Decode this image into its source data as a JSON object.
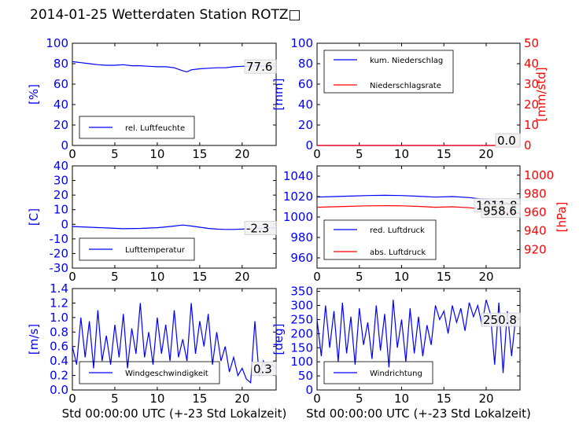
{
  "title": "2014-01-25 Wetterdaten Station ROTZ□",
  "colors": {
    "blue": "#0000ff",
    "red": "#ff0000",
    "black": "#000000"
  },
  "chart_data": [
    {
      "type": "line",
      "panel": "humidity",
      "ylabel": "[%]",
      "xlabel": "",
      "xlim": [
        0,
        24
      ],
      "ylim": [
        0,
        100
      ],
      "xticks": [
        0,
        5,
        10,
        15,
        20
      ],
      "yticks": [
        0,
        20,
        40,
        60,
        80,
        100
      ],
      "series": [
        {
          "name": "rel. Luftfeuchte",
          "color": "#0000ff",
          "x": [
            0,
            1,
            2,
            3,
            4,
            5,
            6,
            7,
            8,
            9,
            10,
            11,
            12,
            13,
            13.5,
            14,
            15,
            16,
            17,
            18,
            19,
            20,
            21,
            22,
            23,
            24
          ],
          "y": [
            82,
            81,
            80,
            79,
            78.5,
            78.5,
            79,
            78,
            78,
            77.5,
            77,
            77,
            76,
            73,
            72,
            74,
            75,
            75.5,
            76,
            76,
            77,
            77.5,
            77.5,
            78,
            77.6,
            77.6
          ]
        }
      ],
      "legend": "lower-left",
      "last_value_label": "77.6"
    },
    {
      "type": "line",
      "panel": "precipitation",
      "ylabel": "[mm]",
      "y2label": "[mm/std]",
      "xlabel": "",
      "xlim": [
        0,
        24
      ],
      "ylim": [
        0,
        100
      ],
      "y2lim": [
        0,
        50
      ],
      "xticks": [
        0,
        5,
        10,
        15,
        20
      ],
      "yticks": [
        0,
        20,
        40,
        60,
        80,
        100
      ],
      "y2ticks": [
        0,
        10,
        20,
        30,
        40,
        50
      ],
      "series": [
        {
          "name": "kum. Niederschlag",
          "color": "#0000ff",
          "axis": "left",
          "x": [
            0,
            24
          ],
          "y": [
            0,
            0
          ]
        },
        {
          "name": "Niederschlagsrate",
          "color": "#ff0000",
          "axis": "right",
          "x": [
            0,
            24
          ],
          "y": [
            0,
            0
          ]
        }
      ],
      "legend": "upper-left",
      "last_value_labels": [
        "0.0",
        "0.0"
      ]
    },
    {
      "type": "line",
      "panel": "temperature",
      "ylabel": "[C]",
      "xlabel": "",
      "xlim": [
        0,
        24
      ],
      "ylim": [
        -30,
        40
      ],
      "xticks": [
        0,
        5,
        10,
        15,
        20
      ],
      "yticks": [
        -30,
        -20,
        -10,
        0,
        10,
        20,
        30,
        40
      ],
      "series": [
        {
          "name": "Lufttemperatur",
          "color": "#0000ff",
          "x": [
            0,
            2,
            4,
            6,
            8,
            10,
            11,
            12,
            13,
            14,
            15,
            16,
            17,
            18,
            19,
            20,
            21,
            22,
            23,
            24
          ],
          "y": [
            -1.5,
            -2,
            -2.5,
            -3,
            -2.8,
            -2.3,
            -1.8,
            -1.2,
            -0.5,
            -1.2,
            -2,
            -2.8,
            -3.3,
            -3.5,
            -3.5,
            -3.3,
            -3,
            -2.8,
            -2.5,
            -2.3
          ]
        }
      ],
      "legend": "lower-left",
      "last_value_label": "-2.3"
    },
    {
      "type": "line",
      "panel": "pressure",
      "ylabel": "",
      "y2label": "[hPa]",
      "xlabel": "",
      "xlim": [
        0,
        24
      ],
      "ylim": [
        950,
        1050
      ],
      "y2lim": [
        900,
        1010
      ],
      "xticks": [
        0,
        5,
        10,
        15,
        20
      ],
      "yticks": [
        960,
        980,
        1000,
        1020,
        1040
      ],
      "y2ticks": [
        920,
        940,
        960,
        980,
        1000
      ],
      "series": [
        {
          "name": "red. Luftdruck",
          "color": "#0000ff",
          "axis": "left",
          "x": [
            0,
            2,
            4,
            6,
            8,
            10,
            12,
            14,
            16,
            18,
            20,
            22,
            24
          ],
          "y": [
            1019.5,
            1020,
            1020.5,
            1021,
            1021.2,
            1021,
            1020.3,
            1019.5,
            1020,
            1019,
            1017,
            1014,
            1011.8
          ]
        },
        {
          "name": "abs. Luftdruck",
          "color": "#ff0000",
          "axis": "right",
          "x": [
            0,
            2,
            4,
            6,
            8,
            10,
            12,
            14,
            16,
            18,
            20,
            22,
            24
          ],
          "y": [
            965.5,
            966,
            966.5,
            967,
            967.2,
            967,
            966.4,
            965.5,
            966,
            965,
            963,
            960.5,
            958.6
          ]
        }
      ],
      "legend": "lower-left",
      "last_value_labels": [
        "1011.8",
        "958.6"
      ]
    },
    {
      "type": "line",
      "panel": "windspeed",
      "ylabel": "[m/s]",
      "xlabel": "Std 00:00:00 UTC (+-23 Std Lokalzeit)",
      "xlim": [
        0,
        24
      ],
      "ylim": [
        0,
        1.4
      ],
      "xticks": [
        0,
        5,
        10,
        15,
        20
      ],
      "yticks": [
        0.0,
        0.2,
        0.4,
        0.6,
        0.8,
        1.0,
        1.2,
        1.4
      ],
      "series": [
        {
          "name": "Windgeschwindigkeit",
          "color": "#0000ff",
          "x": [
            0,
            0.5,
            1,
            1.5,
            2,
            2.5,
            3,
            3.5,
            4,
            4.5,
            5,
            5.5,
            6,
            6.5,
            7,
            7.5,
            8,
            8.5,
            9,
            9.5,
            10,
            10.5,
            11,
            11.5,
            12,
            12.5,
            13,
            13.5,
            14,
            14.5,
            15,
            15.5,
            16,
            16.5,
            17,
            17.5,
            18,
            18.5,
            19,
            19.5,
            20,
            20.5,
            21,
            21.5,
            22,
            22.5,
            23,
            23.5,
            24
          ],
          "y": [
            0.6,
            0.35,
            1.0,
            0.45,
            0.95,
            0.3,
            1.1,
            0.4,
            0.75,
            0.35,
            0.9,
            0.45,
            1.05,
            0.3,
            0.85,
            0.5,
            1.2,
            0.45,
            0.8,
            0.35,
            1.0,
            0.5,
            0.9,
            0.4,
            1.1,
            0.45,
            0.7,
            0.4,
            1.2,
            0.5,
            0.95,
            0.6,
            1.05,
            0.35,
            0.8,
            0.4,
            0.6,
            0.25,
            0.45,
            0.2,
            0.3,
            0.15,
            0.1,
            0.95,
            0.2,
            0.4,
            0.25,
            0.35,
            0.3
          ]
        }
      ],
      "legend": "lower-center",
      "last_value_label": "0.3"
    },
    {
      "type": "line",
      "panel": "winddirection",
      "ylabel": "[deg]",
      "xlabel": "Std 00:00:00 UTC (+-23 Std Lokalzeit)",
      "xlim": [
        0,
        24
      ],
      "ylim": [
        0,
        360
      ],
      "xticks": [
        0,
        5,
        10,
        15,
        20
      ],
      "yticks": [
        0,
        50,
        100,
        150,
        200,
        250,
        300,
        350
      ],
      "series": [
        {
          "name": "Windrichtung",
          "color": "#0000ff",
          "x": [
            0,
            0.5,
            1,
            1.5,
            2,
            2.5,
            3,
            3.5,
            4,
            4.5,
            5,
            5.5,
            6,
            6.5,
            7,
            7.5,
            8,
            8.5,
            9,
            9.5,
            10,
            10.5,
            11,
            11.5,
            12,
            12.5,
            13,
            13.5,
            14,
            14.5,
            15,
            15.5,
            16,
            16.5,
            17,
            17.5,
            18,
            18.5,
            19,
            19.5,
            20,
            20.5,
            21,
            21.5,
            22,
            22.5,
            23,
            23.5,
            24
          ],
          "y": [
            250,
            120,
            300,
            150,
            280,
            100,
            310,
            130,
            260,
            90,
            290,
            160,
            240,
            110,
            300,
            140,
            270,
            80,
            320,
            150,
            250,
            100,
            290,
            130,
            260,
            120,
            230,
            160,
            300,
            250,
            280,
            200,
            300,
            240,
            290,
            210,
            310,
            260,
            300,
            230,
            320,
            270,
            90,
            310,
            60,
            280,
            120,
            260,
            250.8
          ]
        }
      ],
      "legend": "lower-left",
      "last_value_label": "250.8"
    }
  ]
}
